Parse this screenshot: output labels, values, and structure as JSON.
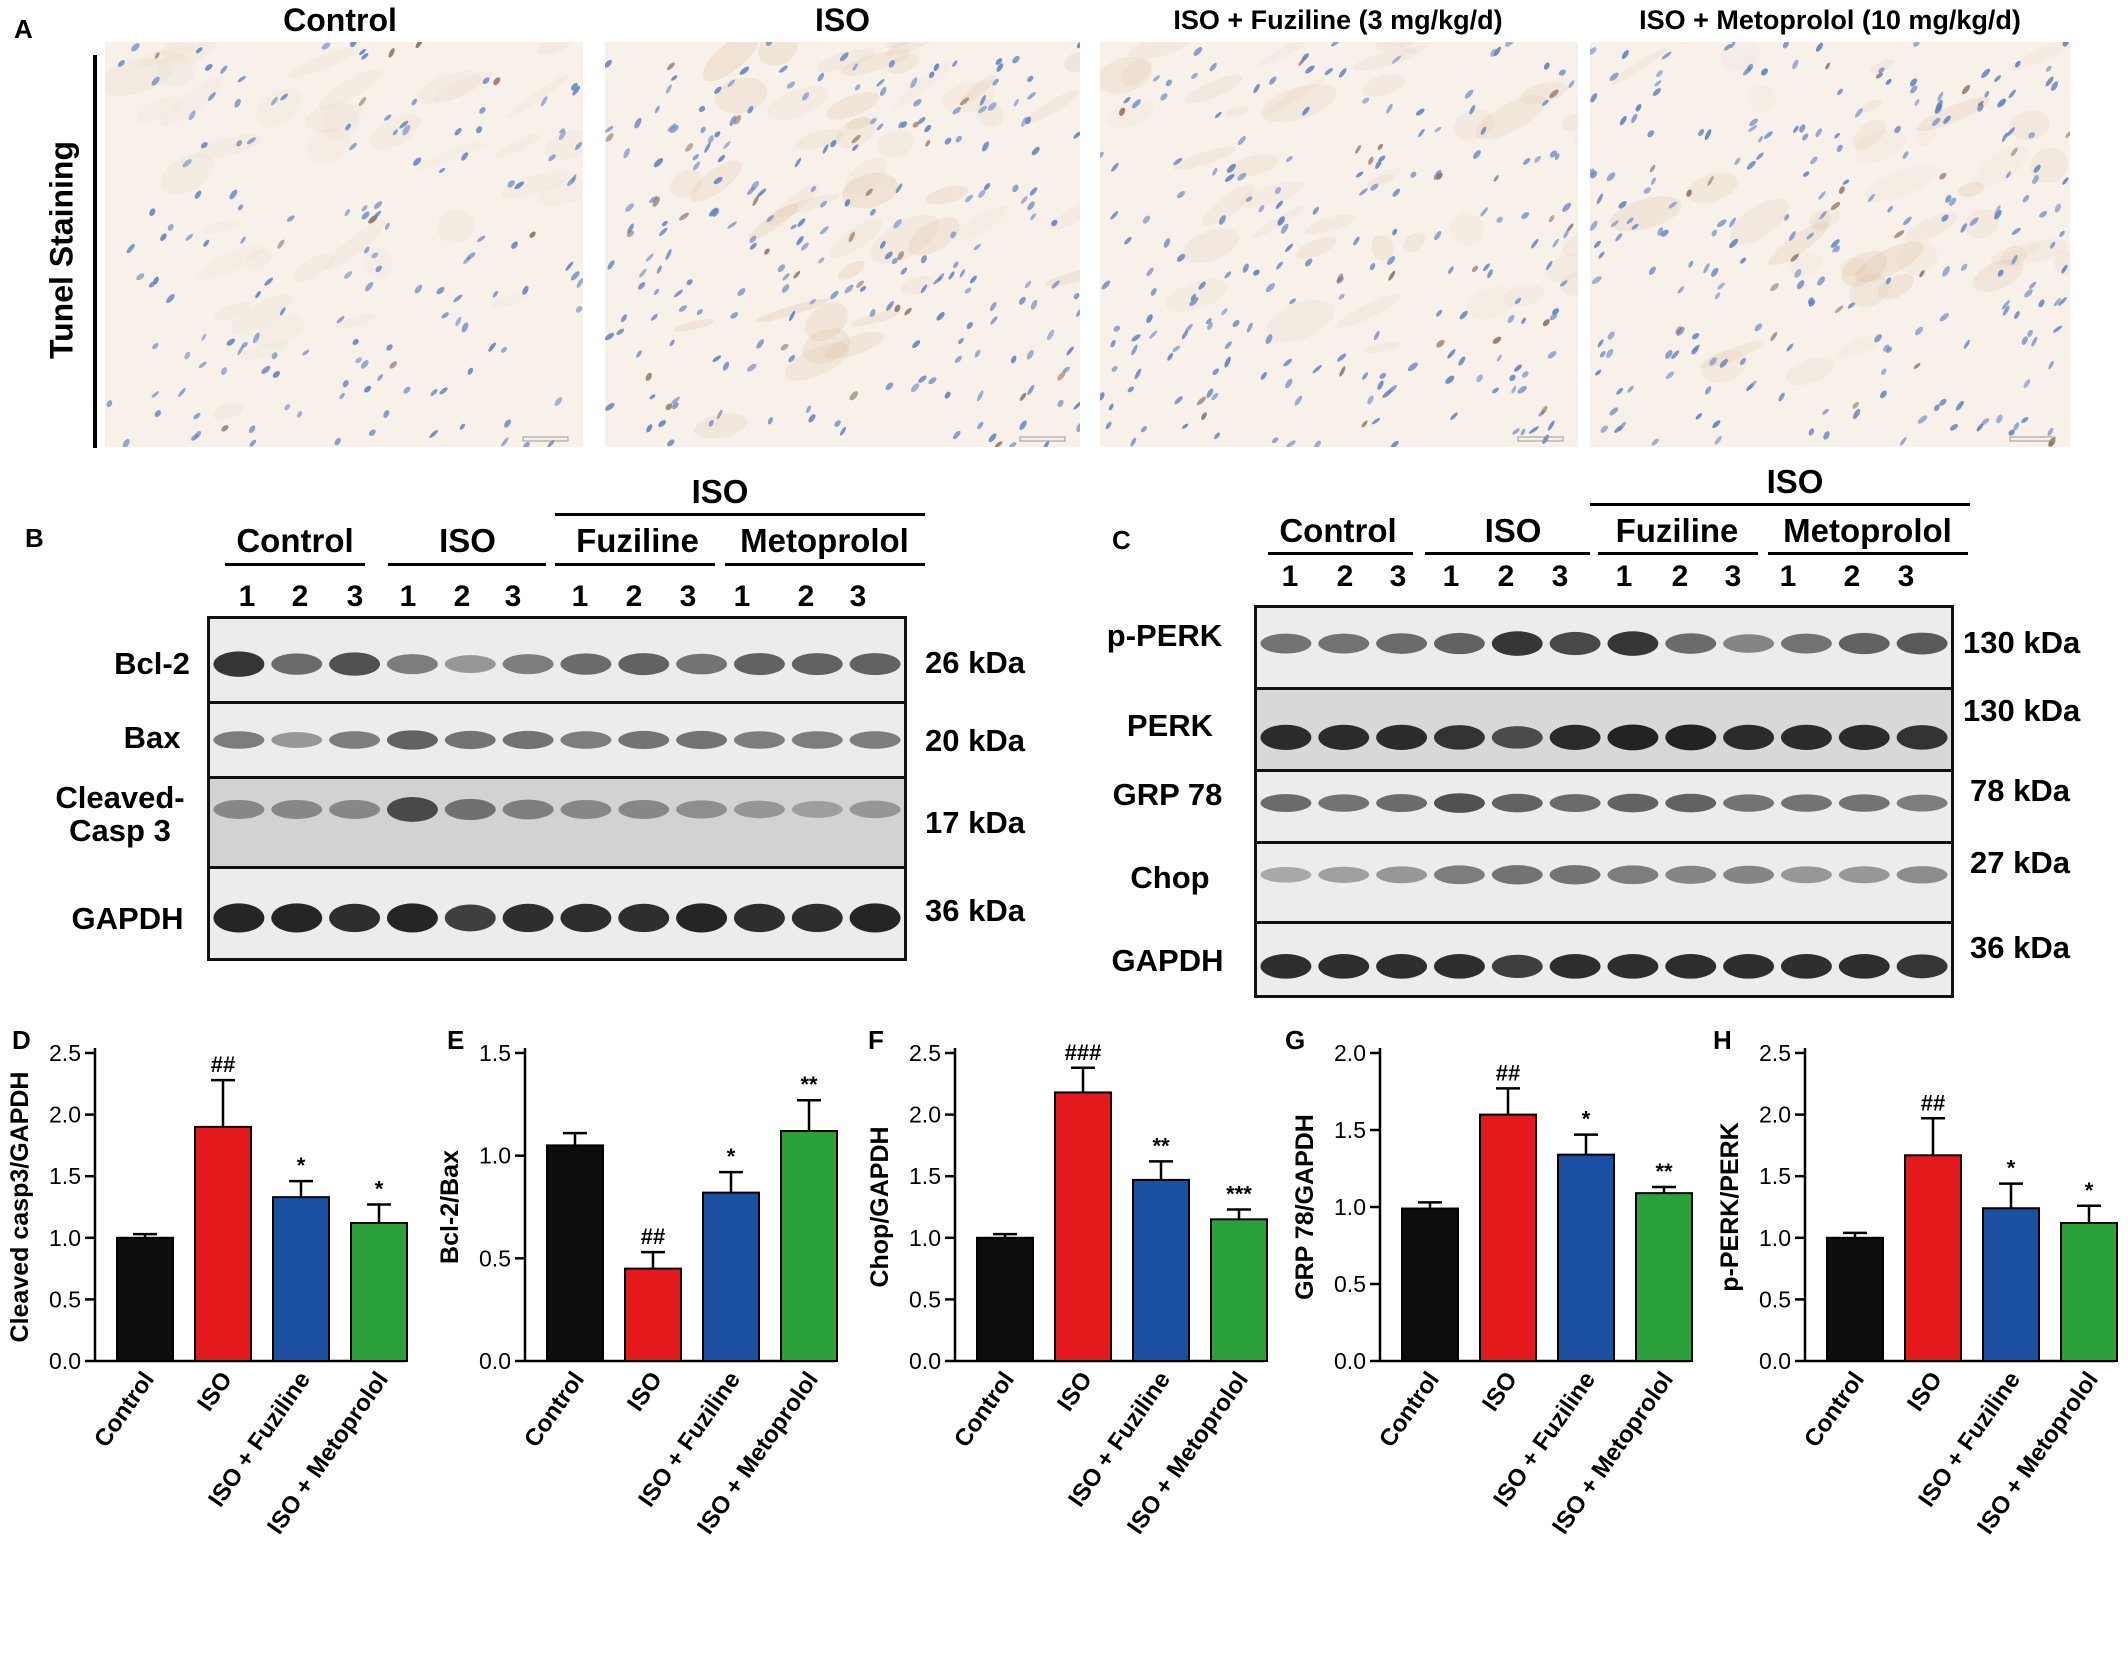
{
  "panel_letters": {
    "a": "A",
    "b": "B",
    "c": "C",
    "d": "D",
    "e": "E",
    "f": "F",
    "g": "G",
    "h": "H"
  },
  "panel_a": {
    "row_label": "Tunel Staining",
    "titles": [
      "Control",
      "ISO",
      "ISO + Fuziline (3 mg/kg/d)",
      "ISO + Metoprolol (10 mg/kg/d)"
    ],
    "nucleus_color": "#5f7fc2",
    "background_color": "#f7f1ea"
  },
  "panel_b": {
    "header_iso": "ISO",
    "groups": [
      "Control",
      "ISO",
      "Fuziline",
      "Metoprolol"
    ],
    "lanes": [
      "1",
      "2",
      "3",
      "1",
      "2",
      "3",
      "1",
      "2",
      "3",
      "1",
      "2",
      "3"
    ],
    "rows": [
      {
        "label": "Bcl-2",
        "kda": "26 kDa"
      },
      {
        "label": "Bax",
        "kda": "20 kDa"
      },
      {
        "label": "Cleaved-\nCasp 3",
        "kda": "17 kDa"
      },
      {
        "label": "GAPDH",
        "kda": "36 kDa"
      }
    ]
  },
  "panel_c": {
    "header_iso": "ISO",
    "groups": [
      "Control",
      "ISO",
      "Fuziline",
      "Metoprolol"
    ],
    "lanes": [
      "1",
      "2",
      "3",
      "1",
      "2",
      "3",
      "1",
      "2",
      "3",
      "1",
      "2",
      "3"
    ],
    "rows": [
      {
        "label": "p-PERK",
        "kda": "130 kDa"
      },
      {
        "label": "PERK",
        "kda": "130 kDa"
      },
      {
        "label": "GRP 78",
        "kda": "78  kDa"
      },
      {
        "label": "Chop",
        "kda": "27  kDa"
      },
      {
        "label": "GAPDH",
        "kda": "36  kDa"
      }
    ]
  },
  "chart_data": [
    {
      "panel": "D",
      "type": "bar",
      "categories": [
        "Control",
        "ISO",
        "ISO + Fuziline",
        "ISO + Metoprolol"
      ],
      "values": [
        1.0,
        1.9,
        1.33,
        1.12
      ],
      "errors": [
        0.03,
        0.38,
        0.13,
        0.15
      ],
      "annotations": [
        "",
        "##",
        "*",
        "*"
      ],
      "ylabel": "Cleaved casp3/GAPDH",
      "ylim": [
        0,
        2.5
      ],
      "yticks": [
        "0.0",
        "0.5",
        "1.0",
        "1.5",
        "2.0",
        "2.5"
      ],
      "colors": [
        "#0d0d0d",
        "#e3191b",
        "#1b4fa2",
        "#2ba13a"
      ]
    },
    {
      "panel": "E",
      "type": "bar",
      "categories": [
        "Control",
        "ISO",
        "ISO + Fuziline",
        "ISO + Metoprolol"
      ],
      "values": [
        1.05,
        0.45,
        0.82,
        1.12
      ],
      "errors": [
        0.06,
        0.08,
        0.1,
        0.15
      ],
      "annotations": [
        "",
        "##",
        "*",
        "**"
      ],
      "ylabel": "Bcl-2/Bax",
      "ylim": [
        0,
        1.5
      ],
      "yticks": [
        "0.0",
        "0.5",
        "1.0",
        "1.5"
      ],
      "colors": [
        "#0d0d0d",
        "#e3191b",
        "#1b4fa2",
        "#2ba13a"
      ]
    },
    {
      "panel": "F",
      "type": "bar",
      "categories": [
        "Control",
        "ISO",
        "ISO + Fuziline",
        "ISO + Metoprolol"
      ],
      "values": [
        1.0,
        2.18,
        1.47,
        1.15
      ],
      "errors": [
        0.03,
        0.2,
        0.15,
        0.08
      ],
      "annotations": [
        "",
        "###",
        "**",
        "***"
      ],
      "ylabel": "Chop/GAPDH",
      "ylim": [
        0,
        2.5
      ],
      "yticks": [
        "0.0",
        "0.5",
        "1.0",
        "1.5",
        "2.0",
        "2.5"
      ],
      "colors": [
        "#0d0d0d",
        "#e3191b",
        "#1b4fa2",
        "#2ba13a"
      ]
    },
    {
      "panel": "G",
      "type": "bar",
      "categories": [
        "Control",
        "ISO",
        "ISO + Fuziline",
        "ISO + Metoprolol"
      ],
      "values": [
        0.99,
        1.6,
        1.34,
        1.09
      ],
      "errors": [
        0.04,
        0.17,
        0.13,
        0.04
      ],
      "annotations": [
        "",
        "##",
        "*",
        "**"
      ],
      "ylabel": "GRP 78/GAPDH",
      "ylim": [
        0,
        2.0
      ],
      "yticks": [
        "0.0",
        "0.5",
        "1.0",
        "1.5",
        "2.0"
      ],
      "colors": [
        "#0d0d0d",
        "#e3191b",
        "#1b4fa2",
        "#2ba13a"
      ]
    },
    {
      "panel": "H",
      "type": "bar",
      "categories": [
        "Control",
        "ISO",
        "ISO + Fuziline",
        "ISO + Metoprolol"
      ],
      "values": [
        1.0,
        1.67,
        1.24,
        1.12
      ],
      "errors": [
        0.04,
        0.3,
        0.2,
        0.14
      ],
      "annotations": [
        "",
        "##",
        "*",
        "*"
      ],
      "ylabel": "p-PERK/PERK",
      "ylim": [
        0,
        2.5
      ],
      "yticks": [
        "0.0",
        "0.5",
        "1.0",
        "1.5",
        "2.0",
        "2.5"
      ],
      "colors": [
        "#0d0d0d",
        "#e3191b",
        "#1b4fa2",
        "#2ba13a"
      ]
    }
  ]
}
